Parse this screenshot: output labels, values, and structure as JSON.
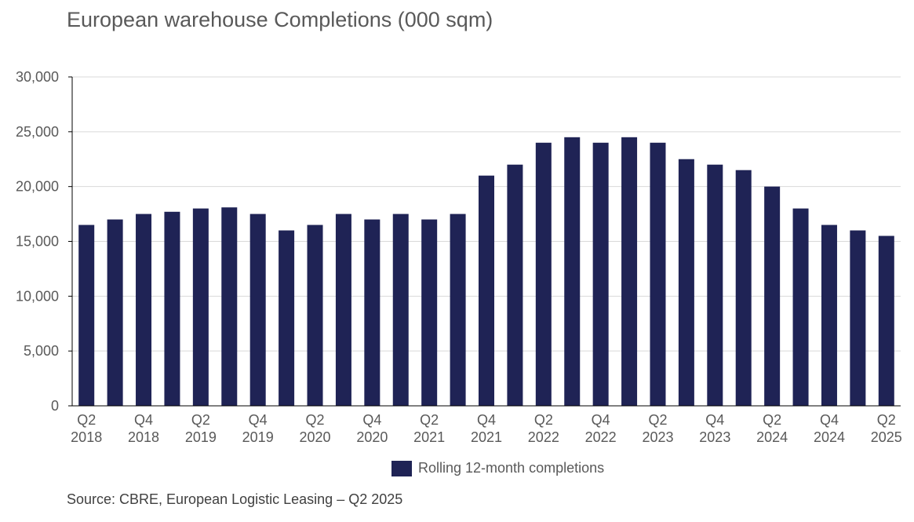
{
  "chart_data": {
    "type": "bar",
    "title": "European warehouse Completions (000 sqm)",
    "xlabel": "",
    "ylabel": "",
    "ylim": [
      0,
      30000
    ],
    "y_ticks": [
      "0",
      "5,000",
      "10,000",
      "15,000",
      "20,000",
      "25,000",
      "30,000"
    ],
    "y_tick_values": [
      0,
      5000,
      10000,
      15000,
      20000,
      25000,
      30000
    ],
    "grid": true,
    "legend_position": "bottom",
    "categories": [
      "Q2 2018",
      "Q3 2018",
      "Q4 2018",
      "Q1 2019",
      "Q2 2019",
      "Q3 2019",
      "Q4 2019",
      "Q1 2020",
      "Q2 2020",
      "Q3 2020",
      "Q4 2020",
      "Q1 2021",
      "Q2 2021",
      "Q3 2021",
      "Q4 2021",
      "Q1 2022",
      "Q2 2022",
      "Q3 2022",
      "Q4 2022",
      "Q1 2023",
      "Q2 2023",
      "Q3 2023",
      "Q4 2023",
      "Q1 2024",
      "Q2 2024",
      "Q3 2024",
      "Q4 2024",
      "Q1 2025",
      "Q2 2025"
    ],
    "x_tick_labels": [
      {
        "index": 0,
        "line1": "Q2",
        "line2": "2018"
      },
      {
        "index": 2,
        "line1": "Q4",
        "line2": "2018"
      },
      {
        "index": 4,
        "line1": "Q2",
        "line2": "2019"
      },
      {
        "index": 6,
        "line1": "Q4",
        "line2": "2019"
      },
      {
        "index": 8,
        "line1": "Q2",
        "line2": "2020"
      },
      {
        "index": 10,
        "line1": "Q4",
        "line2": "2020"
      },
      {
        "index": 12,
        "line1": "Q2",
        "line2": "2021"
      },
      {
        "index": 14,
        "line1": "Q4",
        "line2": "2021"
      },
      {
        "index": 16,
        "line1": "Q2",
        "line2": "2022"
      },
      {
        "index": 18,
        "line1": "Q4",
        "line2": "2022"
      },
      {
        "index": 20,
        "line1": "Q2",
        "line2": "2023"
      },
      {
        "index": 22,
        "line1": "Q4",
        "line2": "2023"
      },
      {
        "index": 24,
        "line1": "Q2",
        "line2": "2024"
      },
      {
        "index": 26,
        "line1": "Q4",
        "line2": "2024"
      },
      {
        "index": 28,
        "line1": "Q2",
        "line2": "2025"
      }
    ],
    "series": [
      {
        "name": "Rolling 12-month completions",
        "color": "#1f2355",
        "values": [
          16500,
          17000,
          17500,
          17700,
          18000,
          18100,
          17500,
          16000,
          16500,
          17500,
          17000,
          17500,
          17000,
          17500,
          21000,
          22000,
          24000,
          24500,
          24000,
          24500,
          24000,
          22500,
          22000,
          21500,
          20000,
          18000,
          16500,
          16000,
          15500
        ]
      }
    ]
  },
  "source": "Source: CBRE, European Logistic Leasing – Q2 2025",
  "colors": {
    "bar": "#1f2355",
    "grid": "#d9d9d9",
    "axis": "#000000",
    "text": "#595959"
  }
}
